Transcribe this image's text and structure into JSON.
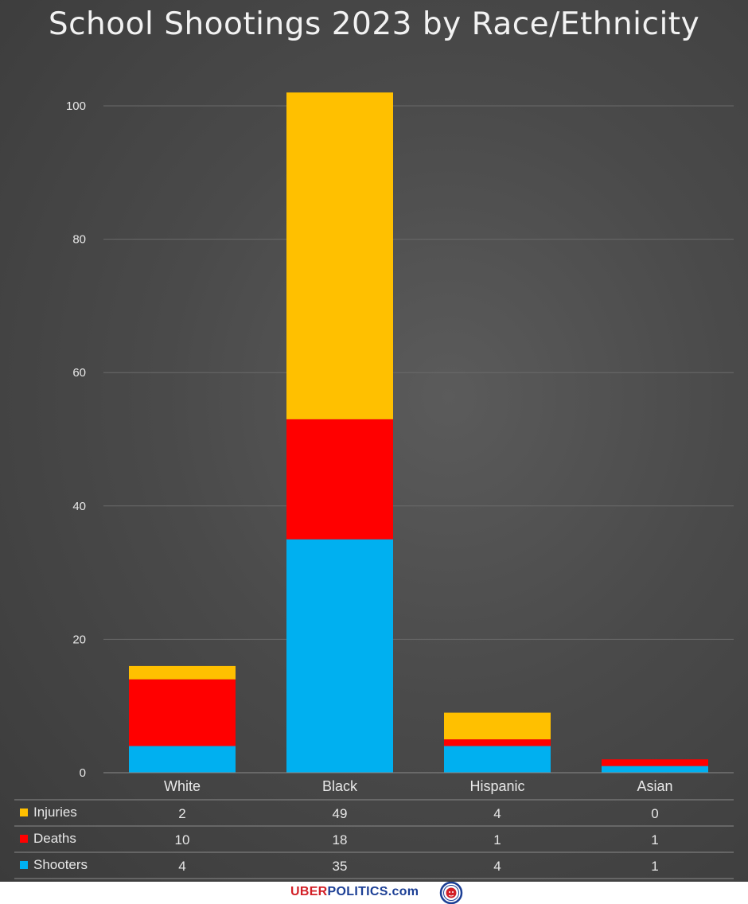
{
  "chart_data": {
    "type": "bar",
    "stacked": true,
    "title": "School Shootings 2023 by Race/Ethnicity",
    "categories": [
      "White",
      "Black",
      "Hispanic",
      "Asian"
    ],
    "series": [
      {
        "name": "Shooters",
        "values": [
          4,
          35,
          4,
          1
        ],
        "color": "#00b0f0"
      },
      {
        "name": "Deaths",
        "values": [
          10,
          18,
          1,
          1
        ],
        "color": "#ff0000"
      },
      {
        "name": "Injuries",
        "values": [
          2,
          49,
          4,
          0
        ],
        "color": "#ffc000"
      }
    ],
    "yticks": [
      "0",
      "20",
      "40",
      "60",
      "80",
      "100"
    ],
    "ylim": [
      0,
      100
    ],
    "grid": true,
    "legend": "data table below x-axis",
    "table_rows": [
      "Injuries",
      "Deaths",
      "Shooters"
    ]
  },
  "footer": {
    "brand_part1": "UBER",
    "brand_part2": "POLITICS",
    "brand_part3": ".com",
    "logo_icon": "lion-seal-icon"
  },
  "colors": {
    "background": "#4a4a4a",
    "text": "#e8e8e8",
    "grid": "#6a6a6a"
  }
}
